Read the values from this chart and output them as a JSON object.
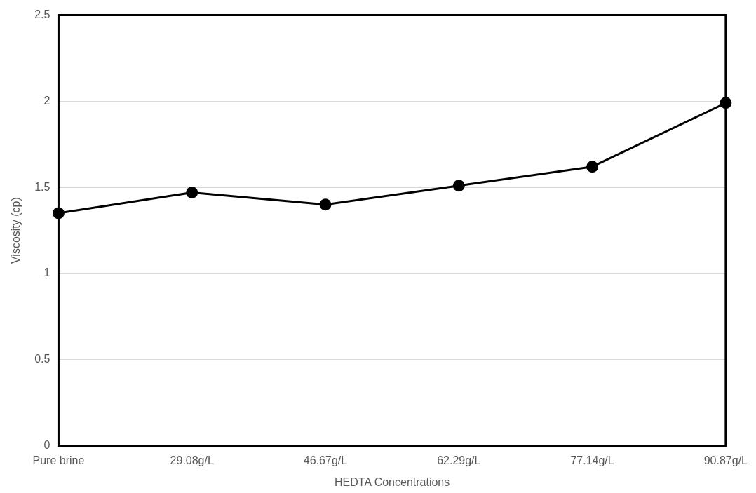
{
  "chart_data": {
    "type": "line",
    "xlabel": "HEDTA Concentrations",
    "ylabel": "Viscosity (cp)",
    "categories": [
      "Pure brine",
      "29.08g/L",
      "46.67g/L",
      "62.29g/L",
      "77.14g/L",
      "90.87g/L"
    ],
    "series": [
      {
        "color": "#000000",
        "values": [
          1.35,
          1.47,
          1.4,
          1.51,
          1.62,
          1.99
        ]
      }
    ],
    "ylim": [
      0,
      2.5
    ],
    "yticks": [
      0,
      0.5,
      1,
      1.5,
      2,
      2.5
    ],
    "grid": "y",
    "legend": false,
    "marker": "circle",
    "line_style": "solid"
  }
}
